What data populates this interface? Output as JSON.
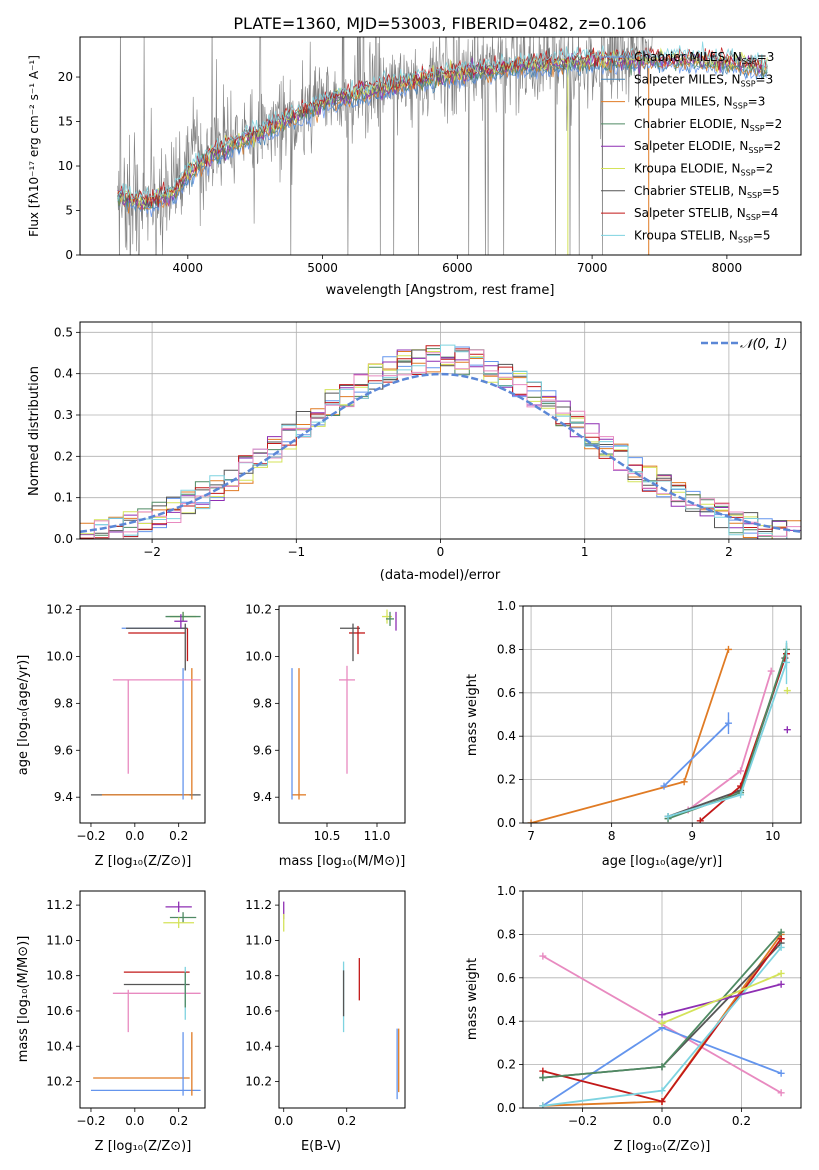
{
  "figure_title": "PLATE=1360, MJD=53003, FIBERID=0482, z=0.106",
  "chart_data": [
    {
      "id": "spectrum",
      "type": "line",
      "xlabel": "wavelength [Angstrom, rest frame]",
      "ylabel": "Flux [fλ10⁻¹⁷ erg cm⁻² s⁻¹ A⁻¹]",
      "xlim": [
        3200,
        8550
      ],
      "ylim": [
        0,
        24.5
      ],
      "xticks": [
        4000,
        5000,
        6000,
        7000,
        8000
      ],
      "yticks": [
        0,
        5,
        10,
        15,
        20
      ],
      "legend_position": "upper right",
      "observed_color": "#808080",
      "continuum_x": [
        3500,
        3700,
        3900,
        4000,
        4200,
        4500,
        5000,
        5500,
        6000,
        6500,
        7000,
        7500,
        8000,
        8300
      ],
      "continuum_y": [
        6.5,
        5.8,
        7.0,
        9.0,
        11.5,
        13.5,
        17.0,
        19.0,
        20.3,
        21.3,
        21.8,
        22.0,
        21.6,
        21.0
      ],
      "series": [
        {
          "name": "Chabrier MILES, N$_{SSP}$=3",
          "label_main": "Chabrier MILES, N",
          "label_sub": "SSP",
          "label_end": "=3",
          "color": "#6495ED"
        },
        {
          "name": "Salpeter MILES, N$_{SSP}$=3",
          "label_main": "Salpeter MILES, N",
          "label_sub": "SSP",
          "label_end": "=3",
          "color": "#4682B4"
        },
        {
          "name": "Kroupa MILES, N$_{SSP}$=3",
          "label_main": "Kroupa MILES, N",
          "label_sub": "SSP",
          "label_end": "=3",
          "color": "#E07B24"
        },
        {
          "name": "Chabrier ELODIE, N$_{SSP}$=2",
          "label_main": "Chabrier ELODIE, N",
          "label_sub": "SSP",
          "label_end": "=2",
          "color": "#4F8A63"
        },
        {
          "name": "Salpeter ELODIE, N$_{SSP}$=2",
          "label_main": "Salpeter ELODIE, N",
          "label_sub": "SSP",
          "label_end": "=2",
          "color": "#8E2FB3"
        },
        {
          "name": "Kroupa ELODIE, N$_{SSP}$=2",
          "label_main": "Kroupa ELODIE, N",
          "label_sub": "SSP",
          "label_end": "=2",
          "color": "#D4E35A"
        },
        {
          "name": "Chabrier STELIB, N$_{SSP}$=5",
          "label_main": "Chabrier STELIB, N",
          "label_sub": "SSP",
          "label_end": "=5",
          "color": "#555555"
        },
        {
          "name": "Salpeter STELIB, N$_{SSP}$=4",
          "label_main": "Salpeter STELIB, N",
          "label_sub": "SSP",
          "label_end": "=4",
          "color": "#C21818"
        },
        {
          "name": "Kroupa STELIB, N$_{SSP}$=5",
          "label_main": "Kroupa STELIB, N",
          "label_sub": "SSP",
          "label_end": "=5",
          "color": "#7ED3E0"
        }
      ]
    },
    {
      "id": "residuals",
      "type": "line",
      "xlabel": "(data-model)/error",
      "ylabel": "Normed distribution",
      "xlim": [
        -2.5,
        2.5
      ],
      "ylim": [
        0,
        0.525
      ],
      "xticks": [
        -2,
        -1,
        0,
        1,
        2
      ],
      "xtick_labels": [
        "−2",
        "−1",
        "0",
        "1",
        "2"
      ],
      "yticks": [
        0.0,
        0.1,
        0.2,
        0.3,
        0.4,
        0.5
      ],
      "ytick_labels": [
        "0.0",
        "0.1",
        "0.2",
        "0.3",
        "0.4",
        "0.5"
      ],
      "grid": true,
      "reference_label": "𝒩(0, 1)",
      "reference_color": "#5B87D6",
      "histogram_colors": [
        "#6495ED",
        "#E07B24",
        "#4F8A63",
        "#8E2FB3",
        "#D4E35A",
        "#555555",
        "#C21818",
        "#7ED3E0",
        "#E88AC0"
      ]
    },
    {
      "id": "age_vs_Z",
      "type": "scatter",
      "xlabel": "Z [log₁₀(Z/Z⊙)]",
      "ylabel": "age  [log₁₀(age/yr)]",
      "xlim": [
        -0.25,
        0.32
      ],
      "ylim": [
        9.29,
        10.215
      ],
      "xticks": [
        -0.2,
        0.0,
        0.2
      ],
      "xtick_labels": [
        "−0.2",
        "0.0",
        "0.2"
      ],
      "yticks": [
        9.4,
        9.6,
        9.8,
        10.0,
        10.2
      ],
      "ytick_labels": [
        "9.4",
        "9.6",
        "9.8",
        "10.0",
        "10.2"
      ],
      "points": [
        {
          "x": 0.05,
          "y": 9.41,
          "xerr": 0.25,
          "yerr": 0.0,
          "color": "#555555"
        },
        {
          "x": 0.05,
          "y": 9.41,
          "xerr": 0.2,
          "yerr": 0.0,
          "color": "#E07B24"
        },
        {
          "x": 0.22,
          "y": 9.67,
          "xerr": 0.0,
          "yerr": 0.28,
          "color": "#6495ED"
        },
        {
          "x": 0.26,
          "y": 9.67,
          "xerr": 0.0,
          "yerr": 0.28,
          "color": "#E07B24"
        },
        {
          "x": 0.1,
          "y": 9.9,
          "xerr": 0.2,
          "yerr": 0.0,
          "color": "#E88AC0"
        },
        {
          "x": -0.03,
          "y": 9.7,
          "xerr": 0.0,
          "yerr": 0.2,
          "color": "#E88AC0"
        },
        {
          "x": 0.09,
          "y": 10.12,
          "xerr": 0.15,
          "yerr": 0.0,
          "color": "#6495ED"
        },
        {
          "x": 0.1,
          "y": 10.12,
          "xerr": 0.14,
          "yerr": 0.0,
          "color": "#555555"
        },
        {
          "x": 0.1,
          "y": 10.1,
          "xerr": 0.13,
          "yerr": 0.0,
          "color": "#C21818"
        },
        {
          "x": 0.23,
          "y": 10.04,
          "xerr": 0.0,
          "yerr": 0.1,
          "color": "#555555"
        },
        {
          "x": 0.24,
          "y": 10.05,
          "xerr": 0.0,
          "yerr": 0.07,
          "color": "#C21818"
        },
        {
          "x": 0.22,
          "y": 10.17,
          "xerr": 0.06,
          "yerr": 0.02,
          "color": "#D4E35A"
        },
        {
          "x": 0.22,
          "y": 10.17,
          "xerr": 0.08,
          "yerr": 0.02,
          "color": "#4F8A63"
        },
        {
          "x": 0.21,
          "y": 10.15,
          "xerr": 0.03,
          "yerr": 0.03,
          "color": "#8E2FB3"
        }
      ]
    },
    {
      "id": "age_vs_mass",
      "type": "scatter",
      "xlabel": "mass [log₁₀(M/M⊙)]",
      "ylabel": "",
      "xlim": [
        10.02,
        11.28
      ],
      "ylim": [
        9.29,
        10.215
      ],
      "xticks": [
        10.5,
        11.0
      ],
      "xtick_labels": [
        "10.5",
        "11.0"
      ],
      "yticks": [
        9.4,
        9.6,
        9.8,
        10.0,
        10.2
      ],
      "ytick_labels": [
        "9.4",
        "9.6",
        "9.8",
        "10.0",
        "10.2"
      ],
      "points": [
        {
          "x": 10.22,
          "y": 9.41,
          "xerr": 0.07,
          "yerr": 0.0,
          "color": "#E07B24"
        },
        {
          "x": 10.15,
          "y": 9.67,
          "xerr": 0.0,
          "yerr": 0.28,
          "color": "#6495ED"
        },
        {
          "x": 10.22,
          "y": 9.67,
          "xerr": 0.0,
          "yerr": 0.28,
          "color": "#E07B24"
        },
        {
          "x": 10.7,
          "y": 9.9,
          "xerr": 0.08,
          "yerr": 0.0,
          "color": "#E88AC0"
        },
        {
          "x": 10.7,
          "y": 9.73,
          "xerr": 0.0,
          "yerr": 0.23,
          "color": "#E88AC0"
        },
        {
          "x": 10.73,
          "y": 10.12,
          "xerr": 0.1,
          "yerr": 0.0,
          "color": "#555555"
        },
        {
          "x": 10.8,
          "y": 10.1,
          "xerr": 0.08,
          "yerr": 0.0,
          "color": "#C21818"
        },
        {
          "x": 10.76,
          "y": 10.06,
          "xerr": 0.0,
          "yerr": 0.08,
          "color": "#555555"
        },
        {
          "x": 10.81,
          "y": 10.07,
          "xerr": 0.0,
          "yerr": 0.06,
          "color": "#C21818"
        },
        {
          "x": 11.1,
          "y": 10.17,
          "xerr": 0.05,
          "yerr": 0.03,
          "color": "#D4E35A"
        },
        {
          "x": 11.13,
          "y": 10.16,
          "xerr": 0.04,
          "yerr": 0.03,
          "color": "#4F8A63"
        },
        {
          "x": 11.19,
          "y": 10.15,
          "xerr": 0.0,
          "yerr": 0.04,
          "color": "#8E2FB3"
        }
      ]
    },
    {
      "id": "weight_vs_age",
      "type": "line",
      "xlabel": "age  [log₁₀(age/yr)]",
      "ylabel": "mass weight",
      "xlim": [
        6.9,
        10.35
      ],
      "ylim": [
        0.0,
        1.0
      ],
      "xticks": [
        7,
        8,
        9,
        10
      ],
      "xtick_labels": [
        "7",
        "8",
        "9",
        "10"
      ],
      "yticks": [
        0.0,
        0.2,
        0.4,
        0.6,
        0.8,
        1.0
      ],
      "ytick_labels": [
        "0.0",
        "0.2",
        "0.4",
        "0.6",
        "0.8",
        "1.0"
      ],
      "grid": true,
      "series": [
        {
          "color": "#E07B24",
          "x": [
            7.0,
            8.9,
            9.45
          ],
          "y": [
            0.0,
            0.19,
            0.8
          ],
          "err": [
            0.0,
            0.0,
            0.0
          ]
        },
        {
          "color": "#6495ED",
          "x": [
            8.65,
            9.45
          ],
          "y": [
            0.17,
            0.46
          ],
          "err": [
            0.0,
            0.05
          ]
        },
        {
          "color": "#E88AC0",
          "x": [
            8.95,
            9.6,
            9.98
          ],
          "y": [
            0.06,
            0.24,
            0.7
          ],
          "err": [
            0.0,
            0.0,
            0.0
          ]
        },
        {
          "color": "#555555",
          "x": [
            8.7,
            9.6,
            10.15
          ],
          "y": [
            0.03,
            0.15,
            0.76
          ],
          "err": [
            0.0,
            0.0,
            0.02
          ]
        },
        {
          "color": "#C21818",
          "x": [
            9.1,
            9.6,
            10.17
          ],
          "y": [
            0.01,
            0.17,
            0.78
          ],
          "err": [
            0.0,
            0.0,
            0.02
          ]
        },
        {
          "color": "#4F8A63",
          "x": [
            8.7,
            9.6,
            10.17
          ],
          "y": [
            0.02,
            0.14,
            0.8
          ],
          "err": [
            0.0,
            0.0,
            0.03
          ]
        },
        {
          "color": "#7ED3E0",
          "x": [
            8.7,
            9.6,
            10.17
          ],
          "y": [
            0.03,
            0.13,
            0.74
          ],
          "err": [
            0.0,
            0.0,
            0.1
          ]
        },
        {
          "color": "#8E2FB3",
          "x": [
            10.18
          ],
          "y": [
            0.43
          ],
          "err": [
            0.0
          ]
        },
        {
          "color": "#D4E35A",
          "x": [
            10.18
          ],
          "y": [
            0.61
          ],
          "err": [
            0.0
          ]
        }
      ]
    },
    {
      "id": "mass_vs_Z",
      "type": "scatter",
      "xlabel": "Z [log₁₀(Z/Z⊙)]",
      "ylabel": "mass [log₁₀(M/M⊙)]",
      "xlim": [
        -0.25,
        0.32
      ],
      "ylim": [
        10.05,
        11.28
      ],
      "xticks": [
        -0.2,
        0.0,
        0.2
      ],
      "xtick_labels": [
        "−0.2",
        "0.0",
        "0.2"
      ],
      "yticks": [
        10.2,
        10.4,
        10.6,
        10.8,
        11.0,
        11.2
      ],
      "ytick_labels": [
        "10.2",
        "10.4",
        "10.6",
        "10.8",
        "11.0",
        "11.2"
      ],
      "points": [
        {
          "x": 0.05,
          "y": 10.15,
          "xerr": 0.25,
          "yerr": 0.0,
          "color": "#6495ED"
        },
        {
          "x": 0.03,
          "y": 10.22,
          "xerr": 0.22,
          "yerr": 0.0,
          "color": "#E07B24"
        },
        {
          "x": 0.22,
          "y": 10.3,
          "xerr": 0.0,
          "yerr": 0.18,
          "color": "#6495ED"
        },
        {
          "x": 0.26,
          "y": 10.3,
          "xerr": 0.0,
          "yerr": 0.18,
          "color": "#E07B24"
        },
        {
          "x": 0.1,
          "y": 10.7,
          "xerr": 0.2,
          "yerr": 0.0,
          "color": "#E88AC0"
        },
        {
          "x": -0.03,
          "y": 10.6,
          "xerr": 0.0,
          "yerr": 0.12,
          "color": "#E88AC0"
        },
        {
          "x": 0.1,
          "y": 10.75,
          "xerr": 0.15,
          "yerr": 0.0,
          "color": "#555555"
        },
        {
          "x": 0.1,
          "y": 10.82,
          "xerr": 0.15,
          "yerr": 0.0,
          "color": "#C21818"
        },
        {
          "x": 0.23,
          "y": 10.7,
          "xerr": 0.0,
          "yerr": 0.15,
          "color": "#7ED3E0"
        },
        {
          "x": 0.23,
          "y": 10.72,
          "xerr": 0.0,
          "yerr": 0.1,
          "color": "#4F8A63"
        },
        {
          "x": 0.2,
          "y": 11.19,
          "xerr": 0.06,
          "yerr": 0.03,
          "color": "#8E2FB3"
        },
        {
          "x": 0.22,
          "y": 11.13,
          "xerr": 0.06,
          "yerr": 0.03,
          "color": "#4F8A63"
        },
        {
          "x": 0.2,
          "y": 11.1,
          "xerr": 0.07,
          "yerr": 0.03,
          "color": "#D4E35A"
        }
      ]
    },
    {
      "id": "mass_vs_EBV",
      "type": "scatter",
      "xlabel": "E(B-V)",
      "ylabel": "",
      "xlim": [
        -0.015,
        0.385
      ],
      "ylim": [
        10.05,
        11.28
      ],
      "xticks": [
        0.0,
        0.2
      ],
      "xtick_labels": [
        "0.0",
        "0.2"
      ],
      "yticks": [
        10.2,
        10.4,
        10.6,
        10.8,
        11.0,
        11.2
      ],
      "ytick_labels": [
        "10.2",
        "10.4",
        "10.6",
        "10.8",
        "11.0",
        "11.2"
      ],
      "points": [
        {
          "x": 0.0,
          "y": 11.17,
          "xerr": 0.0,
          "yerr": 0.05,
          "color": "#8E2FB3"
        },
        {
          "x": 0.0,
          "y": 11.1,
          "xerr": 0.0,
          "yerr": 0.05,
          "color": "#D4E35A"
        },
        {
          "x": 0.19,
          "y": 10.68,
          "xerr": 0.0,
          "yerr": 0.2,
          "color": "#7ED3E0"
        },
        {
          "x": 0.19,
          "y": 10.7,
          "xerr": 0.0,
          "yerr": 0.13,
          "color": "#555555"
        },
        {
          "x": 0.24,
          "y": 10.78,
          "xerr": 0.0,
          "yerr": 0.12,
          "color": "#C21818"
        },
        {
          "x": 0.36,
          "y": 10.3,
          "xerr": 0.0,
          "yerr": 0.2,
          "color": "#6495ED"
        },
        {
          "x": 0.365,
          "y": 10.32,
          "xerr": 0.0,
          "yerr": 0.18,
          "color": "#E07B24"
        }
      ]
    },
    {
      "id": "weight_vs_Z",
      "type": "line",
      "xlabel": "Z [log₁₀(Z/Z⊙)]",
      "ylabel": "mass weight",
      "xlim": [
        -0.35,
        0.35
      ],
      "ylim": [
        0.0,
        1.0
      ],
      "xticks": [
        -0.2,
        0.0,
        0.2
      ],
      "xtick_labels": [
        "−0.2",
        "0.0",
        "0.2"
      ],
      "yticks": [
        0.0,
        0.2,
        0.4,
        0.6,
        0.8,
        1.0
      ],
      "ytick_labels": [
        "0.0",
        "0.2",
        "0.4",
        "0.6",
        "0.8",
        "1.0"
      ],
      "grid": true,
      "series": [
        {
          "color": "#E88AC0",
          "x": [
            -0.3,
            0.3
          ],
          "y": [
            0.7,
            0.07
          ],
          "err": [
            0.0,
            0.0
          ]
        },
        {
          "color": "#6495ED",
          "x": [
            -0.3,
            0.0,
            0.3
          ],
          "y": [
            0.01,
            0.37,
            0.16
          ],
          "err": [
            0.0,
            0.0,
            0.0
          ]
        },
        {
          "color": "#E07B24",
          "x": [
            -0.3,
            0.0,
            0.3
          ],
          "y": [
            0.01,
            0.03,
            0.8
          ],
          "err": [
            0.0,
            0.0,
            0.0
          ]
        },
        {
          "color": "#555555",
          "x": [
            -0.3,
            0.0,
            0.3
          ],
          "y": [
            0.14,
            0.19,
            0.76
          ],
          "err": [
            0.0,
            0.0,
            0.0
          ]
        },
        {
          "color": "#C21818",
          "x": [
            -0.3,
            0.0,
            0.3
          ],
          "y": [
            0.17,
            0.03,
            0.78
          ],
          "err": [
            0.0,
            0.0,
            0.0
          ]
        },
        {
          "color": "#4F8A63",
          "x": [
            -0.3,
            0.0,
            0.3
          ],
          "y": [
            0.14,
            0.19,
            0.81
          ],
          "err": [
            0.0,
            0.0,
            0.0
          ]
        },
        {
          "color": "#7ED3E0",
          "x": [
            -0.3,
            0.0,
            0.3
          ],
          "y": [
            0.01,
            0.08,
            0.74
          ],
          "err": [
            0.0,
            0.0,
            0.0
          ]
        },
        {
          "color": "#8E2FB3",
          "x": [
            0.0,
            0.3
          ],
          "y": [
            0.43,
            0.57
          ],
          "err": [
            0.0,
            0.0
          ]
        },
        {
          "color": "#D4E35A",
          "x": [
            0.0,
            0.3
          ],
          "y": [
            0.39,
            0.62
          ],
          "err": [
            0.0,
            0.0
          ]
        }
      ]
    }
  ]
}
